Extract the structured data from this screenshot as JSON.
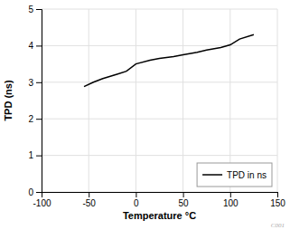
{
  "chart_data": {
    "type": "line",
    "x": [
      -55,
      -45,
      -35,
      -20,
      -10,
      0,
      15,
      25,
      40,
      50,
      65,
      75,
      90,
      100,
      110,
      125
    ],
    "series": [
      {
        "name": "TPD in ns",
        "color": "#000000",
        "values": [
          2.88,
          3.0,
          3.1,
          3.22,
          3.3,
          3.5,
          3.6,
          3.65,
          3.7,
          3.75,
          3.82,
          3.88,
          3.95,
          4.02,
          4.18,
          4.3
        ]
      }
    ],
    "xlabel": "Temperature °C",
    "ylabel": "TPD (ns)",
    "xlim": [
      -100,
      150
    ],
    "ylim": [
      0,
      5
    ],
    "xticks": [
      -100,
      -50,
      0,
      50,
      100,
      150
    ],
    "yticks": [
      0,
      1,
      2,
      3,
      4,
      5
    ],
    "grid": true,
    "legend": "lower right",
    "annotations": [
      "C001"
    ]
  }
}
